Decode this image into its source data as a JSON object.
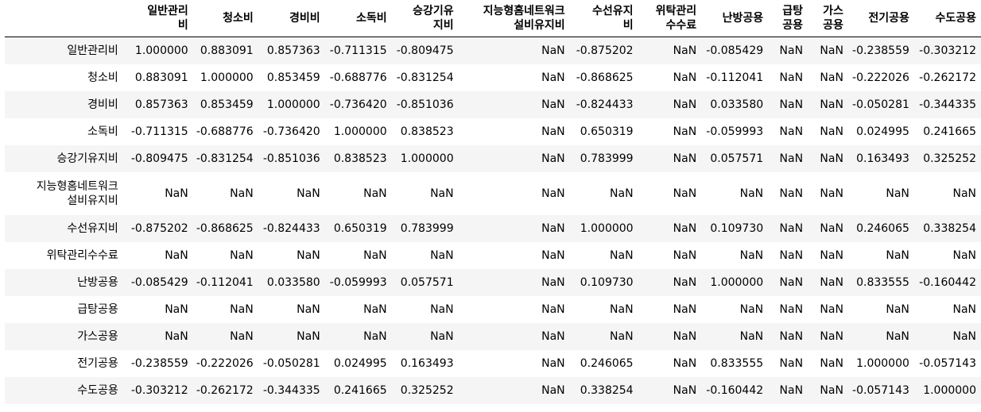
{
  "table": {
    "columns": [
      [
        "일반관리",
        "비"
      ],
      [
        "청소비"
      ],
      [
        "경비비"
      ],
      [
        "소독비"
      ],
      [
        "승강기유",
        "지비"
      ],
      [
        "지능형홈네트워크",
        "설비유지비"
      ],
      [
        "수선유지",
        "비"
      ],
      [
        "위탁관리",
        "수수료"
      ],
      [
        "난방공용"
      ],
      [
        "급탕",
        "공용"
      ],
      [
        "가스",
        "공용"
      ],
      [
        "전기공용"
      ],
      [
        "수도공용"
      ]
    ],
    "rows": [
      {
        "label": [
          "일반관리비"
        ],
        "values": [
          "1.000000",
          "0.883091",
          "0.857363",
          "-0.711315",
          "-0.809475",
          "NaN",
          "-0.875202",
          "NaN",
          "-0.085429",
          "NaN",
          "NaN",
          "-0.238559",
          "-0.303212"
        ]
      },
      {
        "label": [
          "청소비"
        ],
        "values": [
          "0.883091",
          "1.000000",
          "0.853459",
          "-0.688776",
          "-0.831254",
          "NaN",
          "-0.868625",
          "NaN",
          "-0.112041",
          "NaN",
          "NaN",
          "-0.222026",
          "-0.262172"
        ]
      },
      {
        "label": [
          "경비비"
        ],
        "values": [
          "0.857363",
          "0.853459",
          "1.000000",
          "-0.736420",
          "-0.851036",
          "NaN",
          "-0.824433",
          "NaN",
          "0.033580",
          "NaN",
          "NaN",
          "-0.050281",
          "-0.344335"
        ]
      },
      {
        "label": [
          "소독비"
        ],
        "values": [
          "-0.711315",
          "-0.688776",
          "-0.736420",
          "1.000000",
          "0.838523",
          "NaN",
          "0.650319",
          "NaN",
          "-0.059993",
          "NaN",
          "NaN",
          "0.024995",
          "0.241665"
        ]
      },
      {
        "label": [
          "승강기유지비"
        ],
        "values": [
          "-0.809475",
          "-0.831254",
          "-0.851036",
          "0.838523",
          "1.000000",
          "NaN",
          "0.783999",
          "NaN",
          "0.057571",
          "NaN",
          "NaN",
          "0.163493",
          "0.325252"
        ]
      },
      {
        "label": [
          "지능형홈네트워크",
          "설비유지비"
        ],
        "values": [
          "NaN",
          "NaN",
          "NaN",
          "NaN",
          "NaN",
          "NaN",
          "NaN",
          "NaN",
          "NaN",
          "NaN",
          "NaN",
          "NaN",
          "NaN"
        ]
      },
      {
        "label": [
          "수선유지비"
        ],
        "values": [
          "-0.875202",
          "-0.868625",
          "-0.824433",
          "0.650319",
          "0.783999",
          "NaN",
          "1.000000",
          "NaN",
          "0.109730",
          "NaN",
          "NaN",
          "0.246065",
          "0.338254"
        ]
      },
      {
        "label": [
          "위탁관리수수료"
        ],
        "values": [
          "NaN",
          "NaN",
          "NaN",
          "NaN",
          "NaN",
          "NaN",
          "NaN",
          "NaN",
          "NaN",
          "NaN",
          "NaN",
          "NaN",
          "NaN"
        ]
      },
      {
        "label": [
          "난방공용"
        ],
        "values": [
          "-0.085429",
          "-0.112041",
          "0.033580",
          "-0.059993",
          "0.057571",
          "NaN",
          "0.109730",
          "NaN",
          "1.000000",
          "NaN",
          "NaN",
          "0.833555",
          "-0.160442"
        ]
      },
      {
        "label": [
          "급탕공용"
        ],
        "values": [
          "NaN",
          "NaN",
          "NaN",
          "NaN",
          "NaN",
          "NaN",
          "NaN",
          "NaN",
          "NaN",
          "NaN",
          "NaN",
          "NaN",
          "NaN"
        ]
      },
      {
        "label": [
          "가스공용"
        ],
        "values": [
          "NaN",
          "NaN",
          "NaN",
          "NaN",
          "NaN",
          "NaN",
          "NaN",
          "NaN",
          "NaN",
          "NaN",
          "NaN",
          "NaN",
          "NaN"
        ]
      },
      {
        "label": [
          "전기공용"
        ],
        "values": [
          "-0.238559",
          "-0.222026",
          "-0.050281",
          "0.024995",
          "0.163493",
          "NaN",
          "0.246065",
          "NaN",
          "0.833555",
          "NaN",
          "NaN",
          "1.000000",
          "-0.057143"
        ]
      },
      {
        "label": [
          "수도공용"
        ],
        "values": [
          "-0.303212",
          "-0.262172",
          "-0.344335",
          "0.241665",
          "0.325252",
          "NaN",
          "0.338254",
          "NaN",
          "-0.160442",
          "NaN",
          "NaN",
          "-0.057143",
          "1.000000"
        ]
      }
    ]
  }
}
